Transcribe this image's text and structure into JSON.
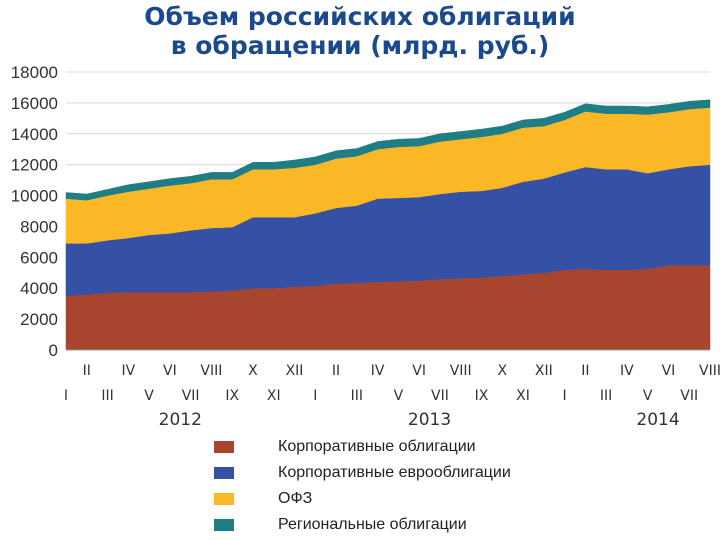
{
  "title": {
    "line1": "Объем российских облигаций",
    "line2": "в обращении (млрд. руб.)"
  },
  "chart_data": {
    "type": "area",
    "stacked": true,
    "title": "Объем российских облигаций в обращении (млрд. руб.)",
    "ylim": [
      0,
      18000
    ],
    "yticks": [
      0,
      2000,
      4000,
      6000,
      8000,
      10000,
      12000,
      14000,
      16000,
      18000
    ],
    "grid": true,
    "x": [
      "I",
      "II",
      "III",
      "IV",
      "V",
      "VI",
      "VII",
      "VIII",
      "IX",
      "X",
      "XI",
      "XII",
      "I",
      "II",
      "III",
      "IV",
      "V",
      "VI",
      "VII",
      "VIII",
      "IX",
      "X",
      "XI",
      "XII",
      "I",
      "II",
      "III",
      "IV",
      "V",
      "VI",
      "VII",
      "VIII"
    ],
    "months_top": [
      "II",
      "IV",
      "VI",
      "VIII",
      "X",
      "XII",
      "II",
      "IV",
      "VI",
      "VIII",
      "X",
      "XII",
      "II",
      "IV",
      "VI",
      "VIII"
    ],
    "months_bottom": [
      "I",
      "III",
      "V",
      "VII",
      "IX",
      "XI",
      "I",
      "III",
      "V",
      "VII",
      "IX",
      "XI",
      "I",
      "III",
      "V",
      "VII"
    ],
    "years": [
      "2012",
      "2013",
      "2014"
    ],
    "series": [
      {
        "name": "Корпоративные облигации",
        "color": "#a8452f",
        "values": [
          3500,
          3600,
          3700,
          3750,
          3750,
          3750,
          3750,
          3800,
          3850,
          4000,
          4000,
          4100,
          4150,
          4300,
          4350,
          4400,
          4450,
          4500,
          4600,
          4650,
          4700,
          4800,
          4900,
          5000,
          5200,
          5250,
          5200,
          5200,
          5250,
          5500,
          5500,
          5500
        ]
      },
      {
        "name": "Корпоративные еврооблигации",
        "color": "#3451a6",
        "values": [
          3400,
          3300,
          3400,
          3500,
          3700,
          3800,
          4000,
          4100,
          4100,
          4600,
          4600,
          4500,
          4700,
          4900,
          5000,
          5400,
          5400,
          5400,
          5500,
          5600,
          5600,
          5700,
          6000,
          6100,
          6300,
          6600,
          6500,
          6500,
          6200,
          6200,
          6400,
          6500
        ]
      },
      {
        "name": "ОФЗ",
        "color": "#fbb826",
        "values": [
          2900,
          2800,
          2900,
          3000,
          3000,
          3100,
          3050,
          3150,
          3100,
          3100,
          3100,
          3200,
          3150,
          3200,
          3200,
          3200,
          3300,
          3300,
          3400,
          3400,
          3500,
          3500,
          3500,
          3400,
          3400,
          3600,
          3600,
          3600,
          3800,
          3700,
          3700,
          3700
        ]
      },
      {
        "name": "Региональные облигации",
        "color": "#1f7d85",
        "values": [
          400,
          400,
          400,
          450,
          450,
          450,
          450,
          450,
          450,
          450,
          450,
          500,
          500,
          500,
          500,
          500,
          500,
          500,
          500,
          500,
          500,
          500,
          500,
          500,
          500,
          500,
          500,
          500,
          500,
          500,
          500,
          500
        ]
      }
    ]
  }
}
